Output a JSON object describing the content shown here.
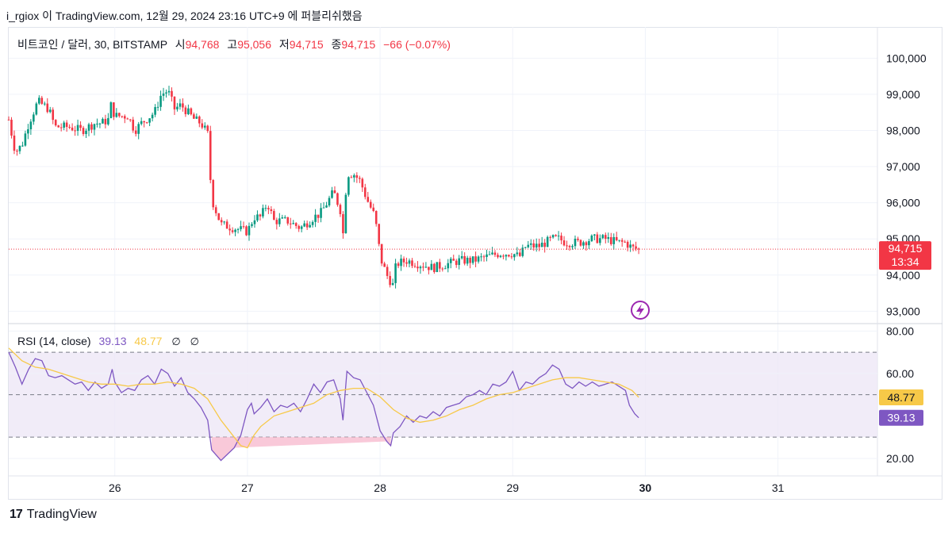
{
  "caption": "i_rgiox 이 TradingView.com, 12월 29, 2024 23:16 UTC+9 에 퍼블리쉬했음",
  "legend": {
    "symbol": "비트코인 / 달러, 30, BITSTAMP",
    "open_label": "시",
    "open": "94,768",
    "high_label": "고",
    "high": "95,056",
    "low_label": "저",
    "low": "94,715",
    "close_label": "종",
    "close": "94,715",
    "change": "−66 (−0.07%)"
  },
  "rsi_legend": {
    "label": "RSI (14, close)",
    "rsi_value": "39.13",
    "ma_value": "48.77",
    "na1": "∅",
    "na2": "∅"
  },
  "price_tag": {
    "price": "94,715",
    "countdown": "13:34"
  },
  "rsi_tags": {
    "ma": "48.77",
    "rsi": "39.13"
  },
  "footer": {
    "brand_mark": "17",
    "brand": "TradingView"
  },
  "colors": {
    "up": "#089981",
    "down": "#f23645",
    "rsi": "#7e57c2",
    "rsi_ma": "#f7c948",
    "band": "#ede7f6"
  },
  "chart_data": [
    {
      "type": "candlestick",
      "symbol": "BTC/USD",
      "exchange": "BITSTAMP",
      "interval": "30",
      "y_ticks": [
        "100,000",
        "99,000",
        "98,000",
        "97,000",
        "96,000",
        "95,000",
        "94,000",
        "93,000"
      ],
      "y_tick_values": [
        100000,
        99000,
        98000,
        97000,
        96000,
        95000,
        94000,
        93000
      ],
      "ylim": [
        92700,
        100600
      ],
      "x_ticks": [
        "26",
        "27",
        "28",
        "29",
        "30",
        "31"
      ],
      "x_tick_values": [
        26,
        27,
        28,
        29,
        30,
        31
      ],
      "xlim": [
        25.2,
        31.75
      ],
      "last_price": 94715,
      "ohlc_last": {
        "open": 94768,
        "high": 95056,
        "low": 94715,
        "close": 94715
      },
      "close_path": [
        [
          25.2,
          98300
        ],
        [
          25.25,
          97400
        ],
        [
          25.3,
          97600
        ],
        [
          25.35,
          98200
        ],
        [
          25.42,
          98800
        ],
        [
          25.5,
          98600
        ],
        [
          25.55,
          98100
        ],
        [
          25.65,
          98100
        ],
        [
          25.75,
          98000
        ],
        [
          25.85,
          98200
        ],
        [
          25.9,
          98200
        ],
        [
          25.95,
          98300
        ],
        [
          25.97,
          98700
        ],
        [
          26.0,
          98400
        ],
        [
          26.1,
          98400
        ],
        [
          26.15,
          98000
        ],
        [
          26.2,
          98200
        ],
        [
          26.3,
          98500
        ],
        [
          26.35,
          99000
        ],
        [
          26.4,
          99100
        ],
        [
          26.45,
          98600
        ],
        [
          26.5,
          98700
        ],
        [
          26.55,
          98500
        ],
        [
          26.6,
          98300
        ],
        [
          26.65,
          98200
        ],
        [
          26.7,
          97900
        ],
        [
          26.73,
          96100
        ],
        [
          26.8,
          95400
        ],
        [
          26.9,
          95300
        ],
        [
          27.0,
          95200
        ],
        [
          27.05,
          95600
        ],
        [
          27.1,
          95600
        ],
        [
          27.15,
          96000
        ],
        [
          27.2,
          95500
        ],
        [
          27.3,
          95500
        ],
        [
          27.4,
          95300
        ],
        [
          27.5,
          95600
        ],
        [
          27.55,
          95700
        ],
        [
          27.6,
          96000
        ],
        [
          27.65,
          96300
        ],
        [
          27.7,
          95800
        ],
        [
          27.72,
          95100
        ],
        [
          27.75,
          96800
        ],
        [
          27.8,
          96800
        ],
        [
          27.85,
          96600
        ],
        [
          27.9,
          96100
        ],
        [
          27.95,
          95700
        ],
        [
          27.98,
          95200
        ],
        [
          28.0,
          94500
        ],
        [
          28.05,
          94000
        ],
        [
          28.1,
          93700
        ],
        [
          28.12,
          94300
        ],
        [
          28.2,
          94400
        ],
        [
          28.3,
          94300
        ],
        [
          28.4,
          94200
        ],
        [
          28.5,
          94300
        ],
        [
          28.6,
          94400
        ],
        [
          28.7,
          94400
        ],
        [
          28.8,
          94500
        ],
        [
          28.9,
          94600
        ],
        [
          29.0,
          94600
        ],
        [
          29.05,
          94500
        ],
        [
          29.1,
          94800
        ],
        [
          29.2,
          94800
        ],
        [
          29.3,
          95000
        ],
        [
          29.35,
          95000
        ],
        [
          29.4,
          94900
        ],
        [
          29.5,
          94900
        ],
        [
          29.6,
          95000
        ],
        [
          29.7,
          95000
        ],
        [
          29.8,
          94900
        ],
        [
          29.85,
          94900
        ],
        [
          29.9,
          94750
        ],
        [
          29.95,
          94715
        ]
      ]
    },
    {
      "type": "line",
      "name": "RSI (14, close)",
      "y_ticks": [
        "80.00",
        "60.00",
        "20.00"
      ],
      "y_tick_values": [
        80,
        60,
        20
      ],
      "ylim": [
        14,
        82
      ],
      "bands": [
        70,
        50,
        30
      ],
      "xlim": [
        25.2,
        31.75
      ],
      "series": [
        {
          "name": "RSI",
          "values": [
            [
              25.2,
              70
            ],
            [
              25.25,
              63
            ],
            [
              25.3,
              55
            ],
            [
              25.35,
              62
            ],
            [
              25.4,
              67
            ],
            [
              25.45,
              66
            ],
            [
              25.5,
              59
            ],
            [
              25.55,
              58
            ],
            [
              25.6,
              59
            ],
            [
              25.65,
              57
            ],
            [
              25.7,
              55
            ],
            [
              25.75,
              56
            ],
            [
              25.8,
              52
            ],
            [
              25.85,
              56
            ],
            [
              25.9,
              53
            ],
            [
              25.95,
              55
            ],
            [
              25.98,
              62
            ],
            [
              26.0,
              56
            ],
            [
              26.05,
              51
            ],
            [
              26.1,
              53
            ],
            [
              26.15,
              52
            ],
            [
              26.2,
              57
            ],
            [
              26.25,
              59
            ],
            [
              26.3,
              55
            ],
            [
              26.35,
              62
            ],
            [
              26.4,
              60
            ],
            [
              26.45,
              54
            ],
            [
              26.5,
              58
            ],
            [
              26.55,
              51
            ],
            [
              26.6,
              48
            ],
            [
              26.65,
              44
            ],
            [
              26.7,
              38
            ],
            [
              26.73,
              24
            ],
            [
              26.8,
              19
            ],
            [
              26.85,
              22
            ],
            [
              26.9,
              25
            ],
            [
              26.95,
              31
            ],
            [
              27.0,
              43
            ],
            [
              27.03,
              46
            ],
            [
              27.05,
              41
            ],
            [
              27.1,
              44
            ],
            [
              27.15,
              48
            ],
            [
              27.2,
              42
            ],
            [
              27.25,
              45
            ],
            [
              27.3,
              44
            ],
            [
              27.35,
              46
            ],
            [
              27.4,
              42
            ],
            [
              27.45,
              48
            ],
            [
              27.5,
              55
            ],
            [
              27.55,
              51
            ],
            [
              27.6,
              56
            ],
            [
              27.65,
              57
            ],
            [
              27.7,
              48
            ],
            [
              27.72,
              38
            ],
            [
              27.75,
              61
            ],
            [
              27.8,
              58
            ],
            [
              27.85,
              57
            ],
            [
              27.9,
              51
            ],
            [
              27.95,
              45
            ],
            [
              28.0,
              33
            ],
            [
              28.05,
              28
            ],
            [
              28.08,
              26
            ],
            [
              28.1,
              32
            ],
            [
              28.15,
              35
            ],
            [
              28.2,
              40
            ],
            [
              28.25,
              37
            ],
            [
              28.3,
              40
            ],
            [
              28.35,
              39
            ],
            [
              28.4,
              42
            ],
            [
              28.45,
              40
            ],
            [
              28.5,
              44
            ],
            [
              28.55,
              45
            ],
            [
              28.6,
              46
            ],
            [
              28.65,
              49
            ],
            [
              28.7,
              50
            ],
            [
              28.75,
              52
            ],
            [
              28.8,
              50
            ],
            [
              28.85,
              55
            ],
            [
              28.9,
              54
            ],
            [
              28.95,
              56
            ],
            [
              29.0,
              61
            ],
            [
              29.05,
              52
            ],
            [
              29.1,
              56
            ],
            [
              29.15,
              55
            ],
            [
              29.2,
              58
            ],
            [
              29.25,
              60
            ],
            [
              29.3,
              64
            ],
            [
              29.35,
              62
            ],
            [
              29.4,
              55
            ],
            [
              29.45,
              53
            ],
            [
              29.5,
              56
            ],
            [
              29.55,
              54
            ],
            [
              29.6,
              56
            ],
            [
              29.65,
              54
            ],
            [
              29.7,
              55
            ],
            [
              29.75,
              56
            ],
            [
              29.8,
              54
            ],
            [
              29.85,
              52
            ],
            [
              29.88,
              45
            ],
            [
              29.92,
              41
            ],
            [
              29.95,
              39.13
            ]
          ]
        },
        {
          "name": "RSI MA",
          "values": [
            [
              25.2,
              72
            ],
            [
              25.3,
              66
            ],
            [
              25.4,
              63
            ],
            [
              25.5,
              62
            ],
            [
              25.6,
              60
            ],
            [
              25.7,
              58
            ],
            [
              25.8,
              56
            ],
            [
              25.9,
              55
            ],
            [
              26.0,
              55
            ],
            [
              26.1,
              54
            ],
            [
              26.2,
              55
            ],
            [
              26.3,
              55
            ],
            [
              26.4,
              56
            ],
            [
              26.5,
              55
            ],
            [
              26.6,
              53
            ],
            [
              26.7,
              48
            ],
            [
              26.8,
              38
            ],
            [
              26.9,
              30
            ],
            [
              26.95,
              26
            ],
            [
              27.0,
              25
            ],
            [
              27.05,
              31
            ],
            [
              27.1,
              35
            ],
            [
              27.2,
              40
            ],
            [
              27.3,
              42
            ],
            [
              27.4,
              44
            ],
            [
              27.5,
              46
            ],
            [
              27.6,
              50
            ],
            [
              27.7,
              52
            ],
            [
              27.8,
              53
            ],
            [
              27.9,
              53
            ],
            [
              28.0,
              49
            ],
            [
              28.1,
              43
            ],
            [
              28.2,
              39
            ],
            [
              28.3,
              37
            ],
            [
              28.4,
              38
            ],
            [
              28.5,
              40
            ],
            [
              28.6,
              43
            ],
            [
              28.7,
              45
            ],
            [
              28.8,
              48
            ],
            [
              28.9,
              50
            ],
            [
              29.0,
              51
            ],
            [
              29.1,
              53
            ],
            [
              29.2,
              55
            ],
            [
              29.3,
              57
            ],
            [
              29.4,
              58
            ],
            [
              29.5,
              58
            ],
            [
              29.6,
              57
            ],
            [
              29.7,
              56
            ],
            [
              29.8,
              55
            ],
            [
              29.9,
              52
            ],
            [
              29.95,
              48.77
            ]
          ]
        }
      ]
    }
  ]
}
